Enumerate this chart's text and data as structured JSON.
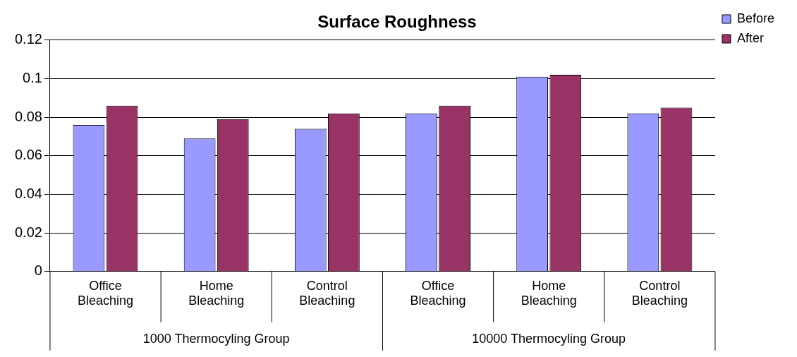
{
  "chart_data": {
    "type": "bar",
    "title": "Surface Roughness",
    "categories": [
      "Office Bleaching",
      "Home Bleaching",
      "Control Bleaching",
      "Office Bleaching",
      "Home Bleaching",
      "Control Bleaching"
    ],
    "series": [
      {
        "name": "Before",
        "color": "#9999ff",
        "values": [
          0.076,
          0.069,
          0.074,
          0.082,
          0.101,
          0.082
        ]
      },
      {
        "name": "After",
        "color": "#993366",
        "values": [
          0.086,
          0.079,
          0.082,
          0.086,
          0.102,
          0.085
        ]
      }
    ],
    "annotations": [
      "1000 Thermocyling Group",
      "10000 Thermocyling Group"
    ],
    "ylim": [
      0,
      0.12
    ],
    "yticks": [
      0,
      0.02,
      0.04,
      0.06,
      0.08,
      0.1,
      0.12
    ],
    "grid": "y",
    "legend": "top right"
  }
}
